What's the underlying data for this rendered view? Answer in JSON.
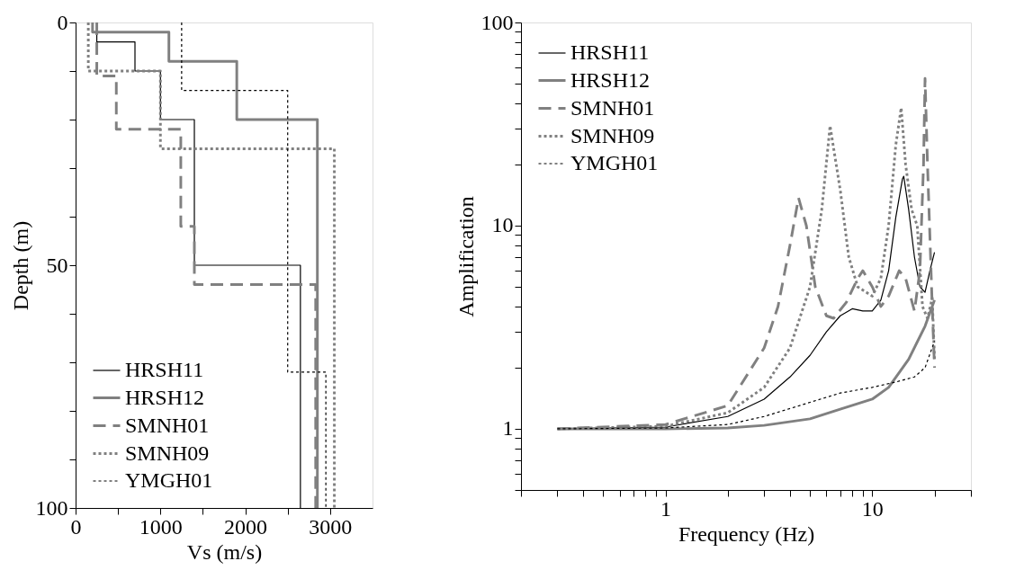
{
  "chart_data": [
    {
      "type": "line",
      "xlabel": "Vs (m/s)",
      "ylabel": "Depth (m)",
      "xlim": [
        0,
        3500
      ],
      "ylim": [
        100,
        0
      ],
      "xticks": [
        0,
        {
          "value": 500,
          "label": null
        },
        1000,
        {
          "value": 1500,
          "label": null
        },
        2000,
        {
          "value": 2500,
          "label": null
        },
        3000
      ],
      "yticks": [
        0,
        {
          "value": 10,
          "label": null
        },
        {
          "value": 20,
          "label": null
        },
        {
          "value": 30,
          "label": null
        },
        {
          "value": 40,
          "label": null
        },
        50,
        {
          "value": 60,
          "label": null
        },
        {
          "value": 70,
          "label": null
        },
        {
          "value": 80,
          "label": null
        },
        {
          "value": 90,
          "label": null
        },
        100
      ],
      "grid": false,
      "legend": "bottom left",
      "series": [
        {
          "name": "HRSH11",
          "color": "#000000",
          "line_style": "solid",
          "x": [
            250,
            250,
            700,
            700,
            1000,
            1000,
            1400,
            1400,
            2650,
            2650
          ],
          "values": [
            0,
            4,
            4,
            10,
            10,
            20,
            20,
            50,
            50,
            100
          ]
        },
        {
          "name": "HRSH12",
          "color": "#808080",
          "line_style": "solid",
          "x": [
            200,
            200,
            1100,
            1100,
            1900,
            1900,
            2850,
            2850
          ],
          "values": [
            0,
            2,
            2,
            8,
            8,
            20,
            20,
            100
          ]
        },
        {
          "name": "SMNH01",
          "color": "#808080",
          "line_style": "dashed",
          "x": [
            250,
            250,
            480,
            480,
            1240,
            1240,
            1400,
            1400,
            2830,
            2830
          ],
          "values": [
            0,
            11,
            11,
            22,
            22,
            42,
            42,
            54,
            54,
            100
          ]
        },
        {
          "name": "SMNH09",
          "color": "#808080",
          "line_style": "dotted",
          "x": [
            150,
            150,
            1000,
            1000,
            3050,
            3050
          ],
          "values": [
            0,
            10,
            10,
            26,
            26,
            100
          ]
        },
        {
          "name": "YMGH01",
          "color": "#000000",
          "line_style": "dotted",
          "x": [
            1250,
            1250,
            2500,
            2500,
            2950,
            2950
          ],
          "values": [
            0,
            14,
            14,
            72,
            72,
            100
          ]
        }
      ]
    },
    {
      "type": "line",
      "xlabel": "Frequency (Hz)",
      "ylabel": "Amplification",
      "log": "xy",
      "xlim": [
        0.2,
        30
      ],
      "ylim": [
        0.5,
        100
      ],
      "xticks": [
        {
          "value": 0.2,
          "label": null
        },
        {
          "value": 0.3,
          "label": null
        },
        {
          "value": 0.4,
          "label": null
        },
        {
          "value": 0.5,
          "label": null
        },
        {
          "value": 0.6,
          "label": null
        },
        {
          "value": 0.7,
          "label": null
        },
        {
          "value": 0.8,
          "label": null
        },
        {
          "value": 0.9,
          "label": null
        },
        1,
        {
          "value": 2,
          "label": null
        },
        {
          "value": 3,
          "label": null
        },
        {
          "value": 4,
          "label": null
        },
        {
          "value": 5,
          "label": null
        },
        {
          "value": 6,
          "label": null
        },
        {
          "value": 7,
          "label": null
        },
        {
          "value": 8,
          "label": null
        },
        {
          "value": 9,
          "label": null
        },
        10,
        {
          "value": 20,
          "label": null
        },
        {
          "value": 30,
          "label": null
        }
      ],
      "yticks": [
        {
          "value": 0.5,
          "label": null
        },
        {
          "value": 0.6,
          "label": null
        },
        {
          "value": 0.7,
          "label": null
        },
        {
          "value": 0.8,
          "label": null
        },
        {
          "value": 0.9,
          "label": null
        },
        1,
        {
          "value": 2,
          "label": null
        },
        {
          "value": 3,
          "label": null
        },
        {
          "value": 4,
          "label": null
        },
        {
          "value": 5,
          "label": null
        },
        {
          "value": 6,
          "label": null
        },
        {
          "value": 7,
          "label": null
        },
        {
          "value": 8,
          "label": null
        },
        {
          "value": 9,
          "label": null
        },
        10,
        {
          "value": 20,
          "label": null
        },
        {
          "value": 30,
          "label": null
        },
        {
          "value": 40,
          "label": null
        },
        {
          "value": 50,
          "label": null
        },
        {
          "value": 60,
          "label": null
        },
        {
          "value": 70,
          "label": null
        },
        {
          "value": 80,
          "label": null
        },
        {
          "value": 90,
          "label": null
        },
        100
      ],
      "grid": false,
      "legend": "top left",
      "series": [
        {
          "name": "HRSH11",
          "color": "#000000",
          "line_style": "solid",
          "x": [
            0.3,
            1,
            2,
            3,
            4,
            5,
            6,
            7,
            8,
            9,
            10,
            11,
            12,
            13,
            14,
            14.2,
            15,
            16,
            17,
            18,
            19,
            20
          ],
          "values": [
            1,
            1.02,
            1.15,
            1.4,
            1.8,
            2.3,
            3.0,
            3.6,
            3.9,
            3.8,
            3.8,
            4.3,
            6,
            11,
            17,
            17.5,
            12,
            7,
            5,
            4.7,
            6,
            7.4
          ]
        },
        {
          "name": "HRSH12",
          "color": "#808080",
          "line_style": "solid",
          "x": [
            0.3,
            1,
            2,
            3,
            5,
            7,
            10,
            12,
            15,
            18,
            20
          ],
          "values": [
            1,
            1,
            1.01,
            1.04,
            1.12,
            1.25,
            1.4,
            1.6,
            2.2,
            3.2,
            4.3
          ]
        },
        {
          "name": "SMNH01",
          "color": "#808080",
          "line_style": "dashed",
          "x": [
            0.3,
            1,
            2,
            3,
            3.5,
            4,
            4.4,
            4.8,
            5.3,
            6,
            6.5,
            7.5,
            8.5,
            9,
            10,
            11,
            12,
            13.5,
            14.5,
            16,
            17,
            17.7,
            18,
            18.5,
            19.5,
            20
          ],
          "values": [
            1,
            1.05,
            1.3,
            2.5,
            4,
            8,
            13.7,
            10,
            5,
            3.6,
            3.5,
            4.2,
            5.5,
            6,
            5,
            4,
            4.5,
            6,
            5.5,
            3.8,
            6,
            20,
            53,
            20,
            4,
            2
          ]
        },
        {
          "name": "SMNH09",
          "color": "#808080",
          "line_style": "dotted",
          "x": [
            0.3,
            1,
            2,
            3,
            4,
            5,
            5.7,
            6.25,
            7,
            7.7,
            8.5,
            10,
            11,
            12,
            13,
            13.8,
            14.5,
            15.5,
            16.5,
            17.5,
            18.5,
            19.5,
            20
          ],
          "values": [
            1,
            1.03,
            1.2,
            1.6,
            2.5,
            5,
            12,
            31,
            15,
            7,
            5,
            4.5,
            5.5,
            10,
            25,
            38,
            20,
            12,
            10,
            4,
            3.5,
            4.4,
            2.2
          ]
        },
        {
          "name": "YMGH01",
          "color": "#000000",
          "line_style": "dotted",
          "x": [
            0.3,
            1,
            2,
            3,
            5,
            7,
            10,
            13,
            16,
            18,
            20
          ],
          "values": [
            1,
            1.01,
            1.05,
            1.15,
            1.35,
            1.5,
            1.6,
            1.7,
            1.8,
            2.0,
            2.7
          ]
        }
      ]
    }
  ]
}
